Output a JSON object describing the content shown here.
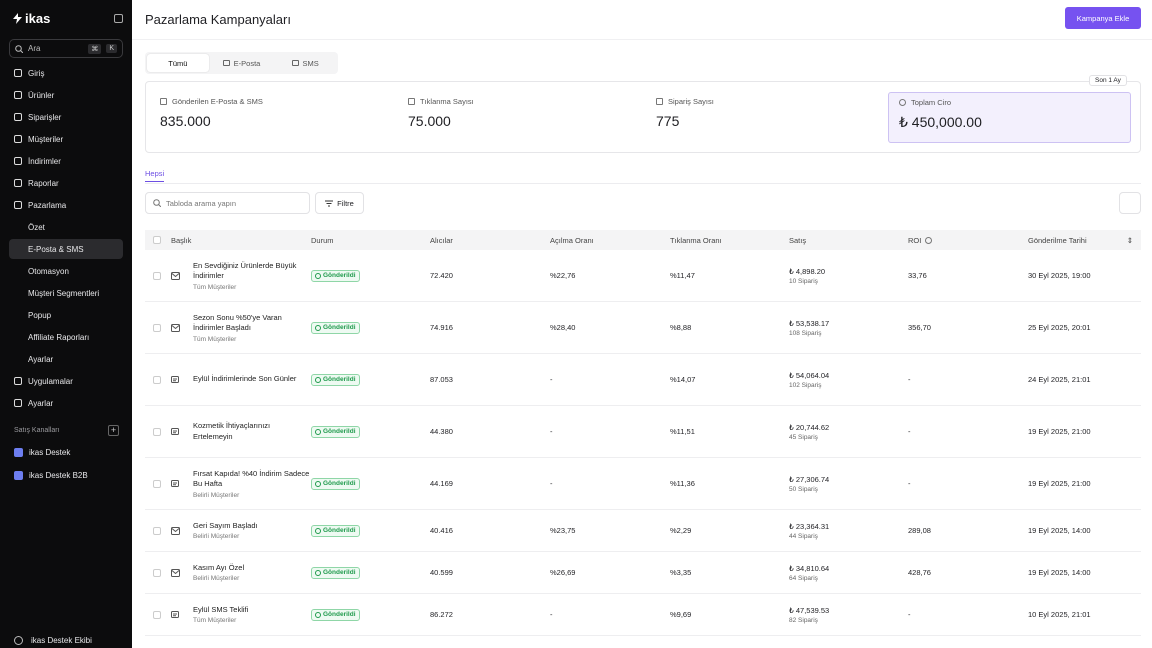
{
  "sidebar": {
    "logo": "ikas",
    "search": "Ara",
    "shortcut": [
      "⌘",
      "K"
    ],
    "nav": [
      "Giriş",
      "Ürünler",
      "Siparişler",
      "Müşteriler",
      "İndirimler",
      "Raporlar",
      "Pazarlama"
    ],
    "marketing_sub": [
      "Özet",
      "E-Posta & SMS",
      "Otomasyon",
      "Müşteri Segmentleri",
      "Popup",
      "Affiliate Raporları",
      "Ayarlar"
    ],
    "nav_bottom": [
      "Uygulamalar",
      "Ayarlar"
    ],
    "channels_title": "Satış Kanalları",
    "channels": [
      "ikas Destek",
      "ikas Destek B2B"
    ],
    "user": "ikas Destek Ekibi"
  },
  "header": {
    "title": "Pazarlama Kampanyaları",
    "button": "Kampanya Ekle"
  },
  "tabs": [
    "Tümü",
    "E-Posta",
    "SMS"
  ],
  "period": "Son 1 Ay",
  "stats": [
    {
      "label": "Gönderilen E-Posta & SMS",
      "value": "835.000"
    },
    {
      "label": "Tıklanma Sayısı",
      "value": "75.000"
    },
    {
      "label": "Sipariş Sayısı",
      "value": "775"
    },
    {
      "label": "Toplam Ciro",
      "value": "₺ 450,000.00"
    }
  ],
  "subtab": "Hepsi",
  "search": "Tabloda arama yapın",
  "filter": "Filtre",
  "table": {
    "columns": [
      "Başlık",
      "Durum",
      "Alıcılar",
      "Açılma Oranı",
      "Tıklanma Oranı",
      "Satış",
      "ROI",
      "Gönderilme Tarihi"
    ],
    "rows": [
      {
        "channel": "email",
        "title": "En Sevdiğiniz Ürünlerde Büyük İndirimler",
        "audience": "Tüm Müşteriler",
        "status": "Gönderildi",
        "recipients": "72.420",
        "open_rate": "%22,76",
        "click_rate": "%11,47",
        "sales": "₺ 4,898.20",
        "orders": "10 Sipariş",
        "roi": "33,76",
        "sent_at": "30 Eyl 2025, 19:00"
      },
      {
        "channel": "email",
        "title": "Sezon Sonu %50'ye Varan İndirimler Başladı",
        "audience": "Tüm Müşteriler",
        "status": "Gönderildi",
        "recipients": "74.916",
        "open_rate": "%28,40",
        "click_rate": "%8,88",
        "sales": "₺ 53,538.17",
        "orders": "108 Sipariş",
        "roi": "356,70",
        "sent_at": "25 Eyl 2025, 20:01"
      },
      {
        "channel": "sms",
        "title": "Eylül İndirimlerinde Son Günler",
        "status": "Gönderildi",
        "recipients": "87.053",
        "open_rate": "-",
        "click_rate": "%14,07",
        "sales": "₺ 54,064.04",
        "orders": "102 Sipariş",
        "roi": "-",
        "sent_at": "24 Eyl 2025, 21:01"
      },
      {
        "channel": "sms",
        "title": "Kozmetik İhtiyaçlarınızı Ertelemeyin",
        "status": "Gönderildi",
        "recipients": "44.380",
        "open_rate": "-",
        "click_rate": "%11,51",
        "sales": "₺ 20,744.62",
        "orders": "45 Sipariş",
        "roi": "-",
        "sent_at": "19 Eyl 2025, 21:00"
      },
      {
        "channel": "sms",
        "title": "Fırsat Kapıda! %40 İndirim Sadece Bu Hafta",
        "audience": "Belirli Müşteriler",
        "status": "Gönderildi",
        "recipients": "44.169",
        "open_rate": "-",
        "click_rate": "%11,36",
        "sales": "₺ 27,306.74",
        "orders": "50 Sipariş",
        "roi": "-",
        "sent_at": "19 Eyl 2025, 21:00"
      },
      {
        "channel": "email",
        "title": "Geri Sayım Başladı",
        "audience": "Belirli Müşteriler",
        "status": "Gönderildi",
        "recipients": "40.416",
        "open_rate": "%23,75",
        "click_rate": "%2,29",
        "sales": "₺ 23,364.31",
        "orders": "44 Sipariş",
        "roi": "289,08",
        "sent_at": "19 Eyl 2025, 14:00"
      },
      {
        "channel": "email",
        "title": "Kasım Ayı Özel",
        "audience": "Belirli Müşteriler",
        "status": "Gönderildi",
        "recipients": "40.599",
        "open_rate": "%26,69",
        "click_rate": "%3,35",
        "sales": "₺ 34,810.64",
        "orders": "64 Sipariş",
        "roi": "428,76",
        "sent_at": "19 Eyl 2025, 14:00"
      },
      {
        "channel": "sms",
        "title": "Eylül SMS Teklifi",
        "audience": "Tüm Müşteriler",
        "status": "Gönderildi",
        "recipients": "86.272",
        "open_rate": "-",
        "click_rate": "%9,69",
        "sales": "₺ 47,539.53",
        "orders": "82 Sipariş",
        "roi": "-",
        "sent_at": "10 Eyl 2025, 21:01"
      }
    ]
  }
}
